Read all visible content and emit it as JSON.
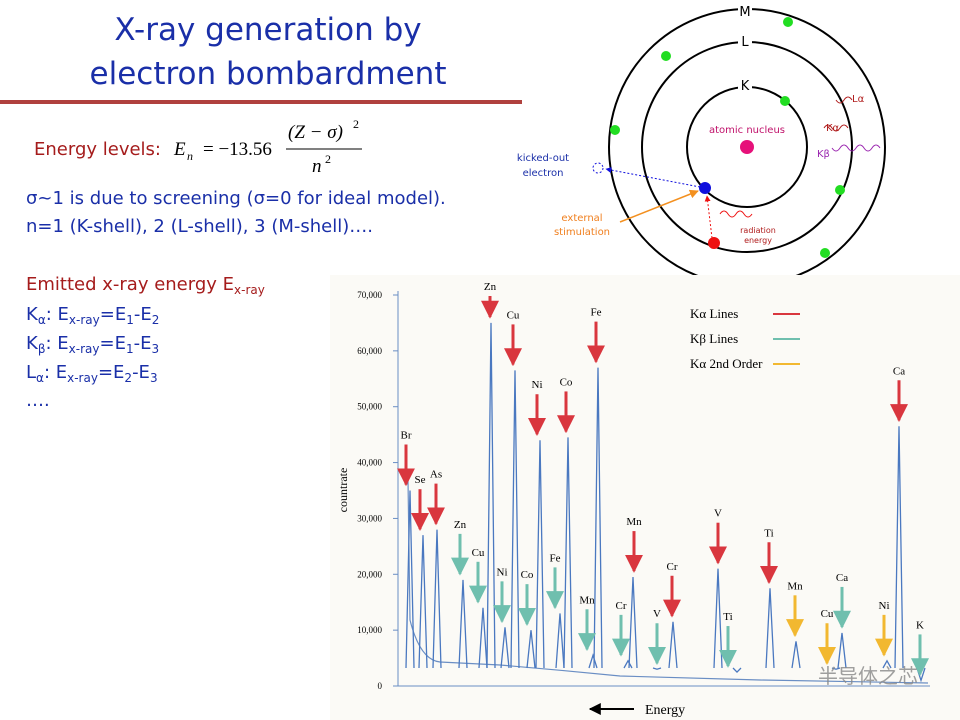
{
  "slide": {
    "title": [
      "X-ray generation by",
      "electron bombardment"
    ],
    "energy_label": "Energy levels:",
    "formula": {
      "lhs": "E",
      "lhs_sub": "n",
      "eq": "= −13.56",
      "num": "(Z − σ)",
      "num_sup": "2",
      "den": "n",
      "den_sup": "2"
    },
    "notes": [
      "σ~1 is due to screening (σ=0 for ideal model).",
      "n=1 (K-shell), 2 (L-shell), 3 (M-shell)…."
    ],
    "emitted": [
      "Emitted x-ray energy E",
      "x-ray"
    ],
    "lines": [
      [
        "K",
        "α",
        ": E",
        "x-ray",
        "=E",
        "1",
        "-E",
        "2"
      ],
      [
        "K",
        "β",
        ": E",
        "x-ray",
        "=E",
        "1",
        "-E",
        "3"
      ],
      [
        "L",
        "α",
        ": E",
        "x-ray",
        "=E",
        "2",
        "-E",
        "3"
      ]
    ],
    "ellipsis": "….",
    "watermark": "半导体之芯"
  },
  "atom": {
    "shells": [
      "K",
      "L",
      "M"
    ],
    "nucleus": "atomic nucleus",
    "kicked": [
      "kicked-out",
      "electron"
    ],
    "stimulation": [
      "external",
      "stimulation"
    ],
    "radiation": [
      "radiation",
      "energy"
    ],
    "transitions": [
      "Lα",
      "Kα",
      "Kβ"
    ]
  },
  "chart_data": {
    "type": "spectrum",
    "y_label": "countrate",
    "x_label": "Energy",
    "ylim": [
      0,
      70000
    ],
    "yticks": [
      0,
      {
        "value": 10000,
        "label": "10,000"
      },
      {
        "value": 20000,
        "label": "20,000"
      },
      {
        "value": 30000,
        "label": "30,000"
      },
      {
        "value": 40000,
        "label": "40,000"
      },
      {
        "value": 50000,
        "label": "50,000"
      },
      {
        "value": 60000,
        "label": "60,000"
      },
      {
        "value": 70000,
        "label": "70,000"
      }
    ],
    "series": [
      {
        "name": "Kα Lines",
        "color": "#d9363e",
        "labels": [
          "Br",
          "Se",
          "As",
          "Zn",
          "Cu",
          "Ni",
          "Co",
          "Fe",
          "Mn",
          "Cr",
          "V",
          "Ti",
          "Ca"
        ],
        "values": [
          35000,
          27000,
          28000,
          65000,
          56500,
          44000,
          44500,
          57000,
          19500,
          11500,
          21000,
          17500,
          46500
        ]
      },
      {
        "name": "Kβ Lines",
        "color": "#6fbfae",
        "labels": [
          "Zn",
          "Cu",
          "Ni",
          "Co",
          "Fe",
          "Mn",
          "Cr",
          "V",
          "Ti",
          "Ca",
          "K"
        ],
        "values": [
          19000,
          14000,
          10500,
          10000,
          13000,
          5500,
          4500,
          3000,
          2500,
          9500,
          1000
        ]
      },
      {
        "name": "Kα 2nd Order",
        "color": "#f2b830",
        "labels": [
          "Mn",
          "Cu",
          "Ni"
        ],
        "values": [
          8000,
          3000,
          4500
        ]
      }
    ]
  }
}
